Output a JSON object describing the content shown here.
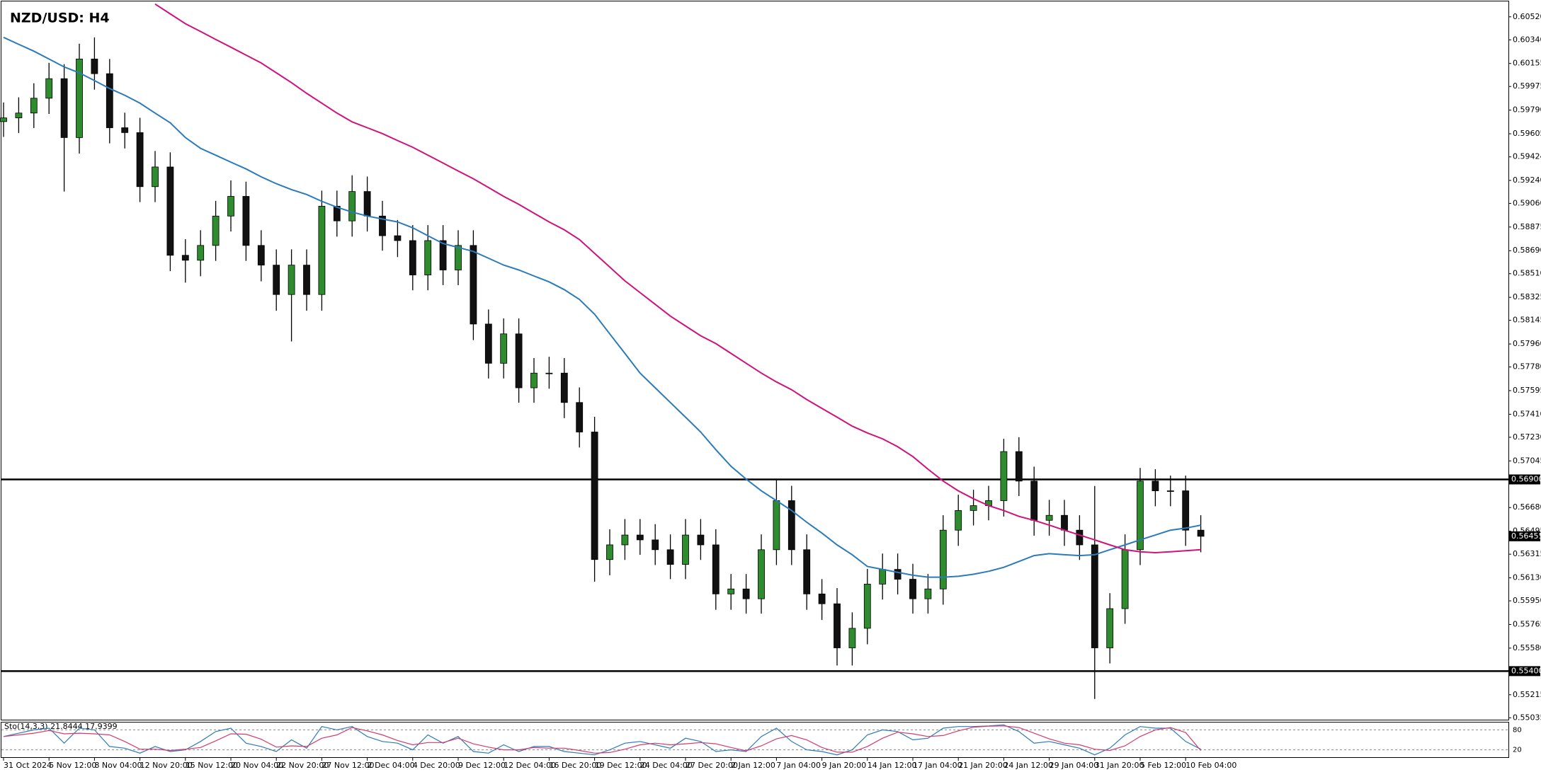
{
  "chart_data": {
    "type": "candlestick",
    "title": "NZD/USD: H4",
    "up_color": "#2e8b2e",
    "down_color": "#111111",
    "categories": [
      "31 Oct 2024",
      null,
      null,
      "5 Nov 12:00",
      null,
      null,
      "8 Nov 04:00",
      null,
      null,
      "12 Nov 20:00",
      null,
      null,
      "15 Nov 12:00",
      null,
      null,
      "20 Nov 04:00",
      null,
      null,
      "22 Nov 20:00",
      null,
      null,
      "27 Nov 12:00",
      null,
      null,
      "2 Dec 04:00",
      null,
      null,
      "4 Dec 20:00",
      null,
      null,
      "9 Dec 12:00",
      null,
      null,
      "12 Dec 04:00",
      null,
      null,
      "16 Dec 20:00",
      null,
      null,
      "19 Dec 12:00",
      null,
      null,
      "24 Dec 04:00",
      null,
      null,
      "27 Dec 20:00",
      null,
      null,
      "2 Jan 12:00",
      null,
      null,
      "7 Jan 04:00",
      null,
      null,
      "9 Jan 20:00",
      null,
      null,
      "14 Jan 12:00",
      null,
      null,
      "17 Jan 04:00",
      null,
      null,
      "21 Jan 20:00",
      null,
      null,
      "24 Jan 12:00",
      null,
      null,
      "29 Jan 04:00",
      null,
      null,
      "31 Jan 20:00",
      null,
      null,
      "5 Feb 12:00",
      null,
      null,
      "10 Feb 04:00",
      null
    ],
    "ohlc": [
      [
        0.597,
        0.5985,
        0.5958,
        0.59729
      ],
      [
        0.59729,
        0.5989,
        0.5961,
        0.59767
      ],
      [
        0.59767,
        0.6,
        0.5965,
        0.59883
      ],
      [
        0.59883,
        0.6016,
        0.5976,
        0.60036
      ],
      [
        0.60036,
        0.6015,
        0.59153,
        0.59575
      ],
      [
        0.59575,
        0.6031,
        0.5945,
        0.6019
      ],
      [
        0.6019,
        0.60359,
        0.5995,
        0.60075
      ],
      [
        0.60075,
        0.6019,
        0.5953,
        0.59652
      ],
      [
        0.59652,
        0.5977,
        0.5949,
        0.59614
      ],
      [
        0.59614,
        0.5973,
        0.5907,
        0.59191
      ],
      [
        0.59191,
        0.5947,
        0.5907,
        0.59345
      ],
      [
        0.59345,
        0.5946,
        0.5853,
        0.58654
      ],
      [
        0.58654,
        0.5878,
        0.5844,
        0.58615
      ],
      [
        0.58615,
        0.5885,
        0.5849,
        0.58731
      ],
      [
        0.58731,
        0.5908,
        0.5861,
        0.58961
      ],
      [
        0.58961,
        0.5924,
        0.5884,
        0.59115
      ],
      [
        0.59115,
        0.5923,
        0.5861,
        0.58731
      ],
      [
        0.58731,
        0.5885,
        0.5845,
        0.58577
      ],
      [
        0.58577,
        0.587,
        0.5822,
        0.58347
      ],
      [
        0.58347,
        0.587,
        0.5798,
        0.58577
      ],
      [
        0.58577,
        0.587,
        0.5822,
        0.58347
      ],
      [
        0.58347,
        0.5916,
        0.5822,
        0.59038
      ],
      [
        0.59038,
        0.5916,
        0.588,
        0.58923
      ],
      [
        0.58923,
        0.5928,
        0.588,
        0.59153
      ],
      [
        0.59153,
        0.5927,
        0.5884,
        0.58961
      ],
      [
        0.58961,
        0.5908,
        0.5869,
        0.58807
      ],
      [
        0.58807,
        0.5893,
        0.5864,
        0.58769
      ],
      [
        0.58769,
        0.5889,
        0.5838,
        0.585
      ],
      [
        0.585,
        0.5889,
        0.5838,
        0.58769
      ],
      [
        0.58769,
        0.5889,
        0.5842,
        0.58539
      ],
      [
        0.58539,
        0.5885,
        0.5842,
        0.58731
      ],
      [
        0.58731,
        0.5885,
        0.5799,
        0.58116
      ],
      [
        0.58116,
        0.5823,
        0.5769,
        0.57809
      ],
      [
        0.57809,
        0.5816,
        0.5769,
        0.58039
      ],
      [
        0.58039,
        0.5816,
        0.575,
        0.57617
      ],
      [
        0.57617,
        0.5785,
        0.575,
        0.57732
      ],
      [
        0.57732,
        0.5786,
        0.5761,
        0.57732
      ],
      [
        0.57732,
        0.5785,
        0.5738,
        0.57502
      ],
      [
        0.57502,
        0.5762,
        0.5715,
        0.57271
      ],
      [
        0.57271,
        0.5739,
        0.561,
        0.56273
      ],
      [
        0.56273,
        0.5651,
        0.5615,
        0.56388
      ],
      [
        0.56388,
        0.5659,
        0.5627,
        0.56465
      ],
      [
        0.56465,
        0.5659,
        0.5631,
        0.56427
      ],
      [
        0.56427,
        0.5655,
        0.5623,
        0.5635
      ],
      [
        0.5635,
        0.5647,
        0.5612,
        0.56235
      ],
      [
        0.56235,
        0.5659,
        0.5612,
        0.56465
      ],
      [
        0.56465,
        0.5659,
        0.5627,
        0.56388
      ],
      [
        0.56388,
        0.5651,
        0.5588,
        0.56004
      ],
      [
        0.56004,
        0.5616,
        0.5588,
        0.56043
      ],
      [
        0.56043,
        0.5616,
        0.5585,
        0.55966
      ],
      [
        0.55966,
        0.5647,
        0.5585,
        0.5635
      ],
      [
        0.5635,
        0.569,
        0.5623,
        0.56734
      ],
      [
        0.56734,
        0.5685,
        0.5623,
        0.5635
      ],
      [
        0.5635,
        0.5647,
        0.5588,
        0.56004
      ],
      [
        0.56004,
        0.5612,
        0.558,
        0.55927
      ],
      [
        0.55927,
        0.5605,
        0.55444,
        0.55582
      ],
      [
        0.55582,
        0.5586,
        0.55444,
        0.55735
      ],
      [
        0.55735,
        0.562,
        0.5561,
        0.56081
      ],
      [
        0.56081,
        0.5632,
        0.5596,
        0.56196
      ],
      [
        0.56196,
        0.5632,
        0.56,
        0.56119
      ],
      [
        0.56119,
        0.5624,
        0.5585,
        0.55966
      ],
      [
        0.55966,
        0.5616,
        0.5585,
        0.56043
      ],
      [
        0.56043,
        0.5662,
        0.5592,
        0.56503
      ],
      [
        0.56503,
        0.5678,
        0.5638,
        0.56657
      ],
      [
        0.56657,
        0.5682,
        0.5654,
        0.56695
      ],
      [
        0.56695,
        0.5685,
        0.5658,
        0.56734
      ],
      [
        0.56734,
        0.57218,
        0.5661,
        0.57118
      ],
      [
        0.57118,
        0.5723,
        0.5677,
        0.56887
      ],
      [
        0.56887,
        0.57,
        0.5646,
        0.5658
      ],
      [
        0.5658,
        0.5674,
        0.5646,
        0.56619
      ],
      [
        0.56619,
        0.5674,
        0.5638,
        0.56503
      ],
      [
        0.56503,
        0.5662,
        0.5627,
        0.56388
      ],
      [
        0.56388,
        0.56849,
        0.55182,
        0.55582
      ],
      [
        0.55582,
        0.5601,
        0.5546,
        0.55889
      ],
      [
        0.55889,
        0.5647,
        0.5577,
        0.5635
      ],
      [
        0.5635,
        0.5699,
        0.5623,
        0.56887
      ],
      [
        0.56887,
        0.5698,
        0.5669,
        0.56811
      ],
      [
        0.56811,
        0.5693,
        0.5669,
        0.56811
      ],
      [
        0.56811,
        0.5693,
        0.5638,
        0.56503
      ],
      [
        0.56503,
        0.5662,
        0.5633,
        0.56455
      ]
    ],
    "moving_averages": [
      {
        "color": "#2b7bba",
        "values": [
          0.60359,
          0.60305,
          0.60251,
          0.6019,
          0.60128,
          0.60082,
          0.60021,
          0.59959,
          0.59906,
          0.59844,
          0.59767,
          0.59691,
          0.59575,
          0.59491,
          0.59437,
          0.59383,
          0.5933,
          0.59268,
          0.59214,
          0.59168,
          0.5913,
          0.59076,
          0.5903,
          0.58992,
          0.58961,
          0.58938,
          0.58915,
          0.58869,
          0.58807,
          0.58746,
          0.58715,
          0.58684,
          0.58631,
          0.58577,
          0.58539,
          0.58492,
          0.58446,
          0.58385,
          0.58308,
          0.58193,
          0.58039,
          0.57886,
          0.57732,
          0.57617,
          0.57502,
          0.57387,
          0.57271,
          0.57133,
          0.57003,
          0.56903,
          0.56811,
          0.56734,
          0.56657,
          0.56565,
          0.5648,
          0.56388,
          0.56311,
          0.56219,
          0.56196,
          0.56173,
          0.5615,
          0.56135,
          0.56135,
          0.56142,
          0.56158,
          0.56181,
          0.56212,
          0.56258,
          0.56304,
          0.56319,
          0.56311,
          0.56304,
          0.56311,
          0.5635,
          0.56388,
          0.56427,
          0.56465,
          0.56503,
          0.56519,
          0.56542
        ]
      },
      {
        "color": "#d1127a",
        "values": [
          null,
          null,
          null,
          null,
          null,
          null,
          null,
          null,
          null,
          null,
          0.6062,
          0.60543,
          0.60466,
          0.60405,
          0.60343,
          0.60282,
          0.6022,
          0.60159,
          0.60082,
          0.60005,
          0.59921,
          0.59844,
          0.59767,
          0.59698,
          0.59652,
          0.59606,
          0.59552,
          0.59499,
          0.59437,
          0.59376,
          0.59314,
          0.59253,
          0.59184,
          0.59115,
          0.59053,
          0.58984,
          0.58915,
          0.58853,
          0.58777,
          0.58669,
          0.58562,
          0.58454,
          0.58362,
          0.5827,
          0.58178,
          0.58101,
          0.58024,
          0.57963,
          0.57886,
          0.57809,
          0.57732,
          0.57663,
          0.57602,
          0.57525,
          0.57456,
          0.57387,
          0.57317,
          0.57264,
          0.57218,
          0.57156,
          0.57079,
          0.5698,
          0.56887,
          0.56811,
          0.56749,
          0.56695,
          0.56657,
          0.56611,
          0.5658,
          0.56542,
          0.56503,
          0.56465,
          0.56427,
          0.56388,
          0.5635,
          0.56334,
          0.56327,
          0.56334,
          0.56342,
          0.5635
        ]
      }
    ],
    "ylim": [
      0.5502,
      0.60635
    ],
    "yticks": [
      {
        "value": 0.6052,
        "label": "0.60520"
      },
      {
        "value": 0.6034,
        "label": "0.60340"
      },
      {
        "value": 0.60155,
        "label": "0.60155"
      },
      {
        "value": 0.59975,
        "label": "0.59975"
      },
      {
        "value": 0.5979,
        "label": "0.59790"
      },
      {
        "value": 0.59605,
        "label": "0.59605"
      },
      {
        "value": 0.59424,
        "label": "0.59424"
      },
      {
        "value": 0.5924,
        "label": "0.59240"
      },
      {
        "value": 0.5906,
        "label": "0.59060"
      },
      {
        "value": 0.58875,
        "label": "0.58875"
      },
      {
        "value": 0.5869,
        "label": "0.58690"
      },
      {
        "value": 0.5851,
        "label": "0.58510"
      },
      {
        "value": 0.58325,
        "label": "0.58325"
      },
      {
        "value": 0.58145,
        "label": "0.58145"
      },
      {
        "value": 0.5796,
        "label": "0.57960"
      },
      {
        "value": 0.5778,
        "label": "0.57780"
      },
      {
        "value": 0.57595,
        "label": "0.57595"
      },
      {
        "value": 0.5741,
        "label": "0.57410"
      },
      {
        "value": 0.5723,
        "label": "0.57230"
      },
      {
        "value": 0.57045,
        "label": "0.57045"
      },
      {
        "value": 0.5668,
        "label": "0.56680"
      },
      {
        "value": 0.56495,
        "label": "0.56495"
      },
      {
        "value": 0.56315,
        "label": "0.56315"
      },
      {
        "value": 0.5613,
        "label": "0.56130"
      },
      {
        "value": 0.5595,
        "label": "0.55950"
      },
      {
        "value": 0.55765,
        "label": "0.55765"
      },
      {
        "value": 0.5558,
        "label": "0.55580"
      },
      {
        "value": 0.55215,
        "label": "0.55215"
      },
      {
        "value": 0.55035,
        "label": "0.55035"
      }
    ],
    "hlines": [
      {
        "value": 0.569,
        "label": "0.56900"
      },
      {
        "value": 0.554,
        "label": "0.55400"
      }
    ],
    "last_price": {
      "value": 0.56455,
      "label": "0.56455"
    },
    "stochastic": {
      "label": "Sto(14,3,3) 21.8444 17.9399",
      "ylim": [
        0,
        100
      ],
      "yticks": [
        80,
        20
      ],
      "lines": [
        {
          "color": "#2b7bba",
          "values": [
            60,
            70,
            80,
            85,
            40,
            85,
            80,
            30,
            25,
            10,
            30,
            15,
            20,
            45,
            75,
            85,
            40,
            30,
            15,
            50,
            25,
            90,
            80,
            90,
            60,
            45,
            40,
            20,
            65,
            40,
            60,
            15,
            10,
            35,
            15,
            30,
            30,
            15,
            10,
            5,
            20,
            40,
            45,
            35,
            25,
            55,
            45,
            15,
            20,
            15,
            60,
            85,
            45,
            20,
            15,
            5,
            20,
            65,
            80,
            75,
            50,
            55,
            85,
            90,
            90,
            92,
            95,
            75,
            40,
            45,
            35,
            25,
            5,
            25,
            65,
            90,
            85,
            85,
            45,
            21.8444
          ]
        },
        {
          "color": "#d83a6a",
          "values": [
            60,
            65,
            70,
            78,
            68,
            70,
            68,
            65,
            45,
            22,
            22,
            18,
            22,
            27,
            47,
            68,
            67,
            52,
            28,
            32,
            30,
            55,
            65,
            87,
            77,
            65,
            48,
            35,
            42,
            42,
            55,
            38,
            28,
            20,
            20,
            27,
            25,
            25,
            18,
            10,
            12,
            22,
            35,
            40,
            35,
            38,
            42,
            38,
            27,
            17,
            32,
            53,
            63,
            50,
            27,
            13,
            13,
            30,
            55,
            73,
            68,
            60,
            63,
            77,
            88,
            91,
            92,
            87,
            70,
            53,
            40,
            35,
            22,
            18,
            32,
            60,
            80,
            87,
            72,
            17.9399
          ]
        }
      ]
    }
  }
}
